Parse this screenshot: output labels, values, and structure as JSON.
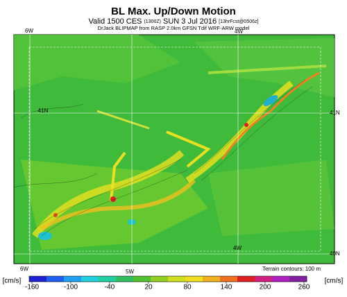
{
  "header": {
    "title": "BL Max. Up/Down Motion",
    "subtitle": [
      "Valid 1500 CES",
      "(1300Z)",
      "SUN 3 Jul 2016",
      "[13hrFcst@0506z]"
    ],
    "credit": "DrJack BLIPMAP from RASP 2.0km GFSN Tdif WRF-ARW model"
  },
  "map": {
    "labels": [
      "6W",
      "4W",
      "41N",
      "41N",
      "4W",
      "40N",
      "6W",
      "5W"
    ],
    "terrain_note": "Terrain contours: 100 m"
  },
  "colorbar": {
    "unit": "[cm/s]",
    "ticks": [
      -160,
      -100,
      -40,
      20,
      80,
      140,
      200,
      260
    ],
    "colors": [
      "#2020d0",
      "#2060f0",
      "#20a0f0",
      "#20d0e0",
      "#20d0a0",
      "#30c060",
      "#50c030",
      "#90d020",
      "#d0e020",
      "#f0e020",
      "#f0b020",
      "#f07020",
      "#e02020",
      "#d02080",
      "#b020c0",
      "#8020a0"
    ]
  }
}
